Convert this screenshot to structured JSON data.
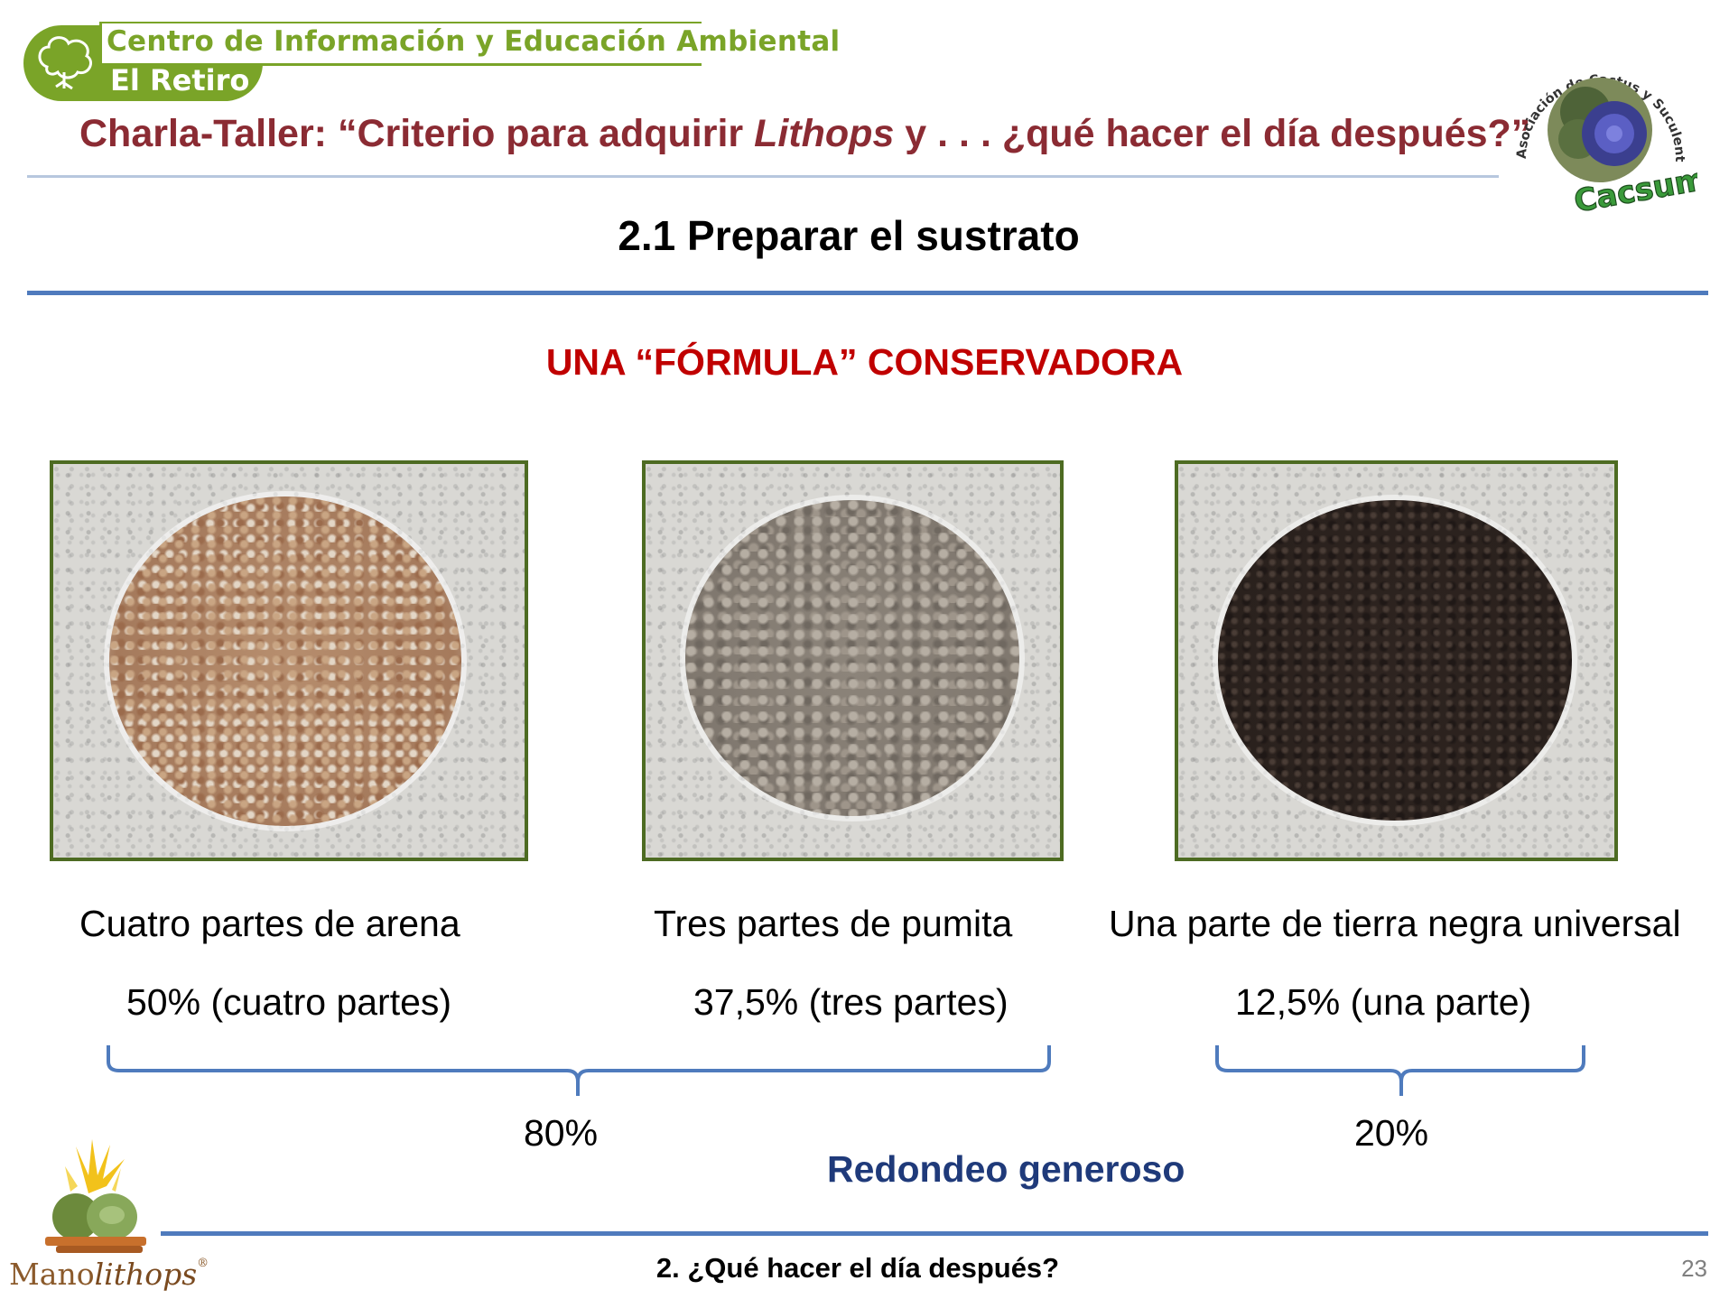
{
  "header": {
    "center_name": "Centro de Información y Educación Ambiental",
    "center_place": "El Retiro",
    "talk_title_before": "Charla-Taller:  “Criterio para adquirir ",
    "talk_title_italic": "Lithops",
    "talk_title_after": " y . . . ¿qué hacer el día después?”",
    "association_ring_text": "Asociación de Cactus y Suculentas de Madrid",
    "association_name": "Cacsuma"
  },
  "section_title": "2.1 Preparar el sustrato",
  "formula_title": "UNA “FÓRMULA” CONSERVADORA",
  "components": [
    {
      "caption": "Cuatro partes de arena",
      "percent": "50% (cuatro partes)"
    },
    {
      "caption": "Tres partes de pumita",
      "percent": "37,5% (tres partes)"
    },
    {
      "caption": "Una parte de tierra negra universal",
      "percent": "12,5% (una parte)"
    }
  ],
  "groups": {
    "first": "80%",
    "second": "20%"
  },
  "rounding_note": "Redondeo generoso",
  "footer": {
    "text": "2. ¿Qué hacer el día después?",
    "page_number": "23",
    "brand_plain": "Mano",
    "brand_script": "lithops",
    "brand_mark": "®"
  },
  "colors": {
    "title_red": "#8b2b33",
    "formula_red": "#c00000",
    "rule_blue": "#4f7bbd",
    "note_navy": "#1f3a7a",
    "logo_green": "#7aa428",
    "photo_border": "#4d6b22"
  }
}
